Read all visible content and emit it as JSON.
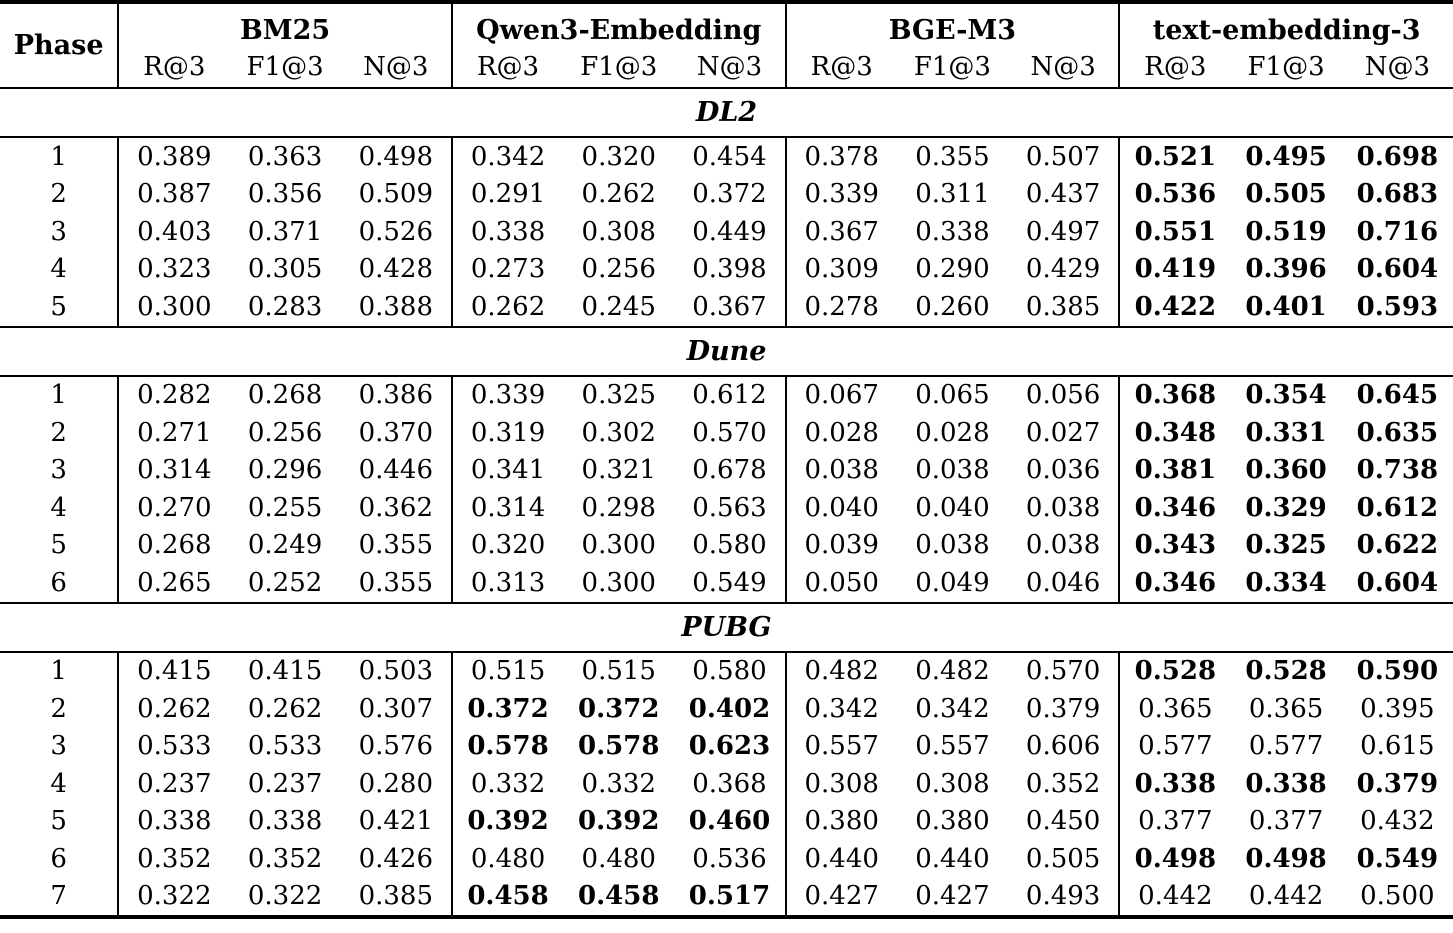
{
  "table": {
    "phase_header": "Phase",
    "metric_headers": [
      "R@3",
      "F1@3",
      "N@3"
    ],
    "groups": [
      "BM25",
      "Qwen3-Embedding",
      "BGE-M3",
      "text-embedding-3"
    ],
    "colors": {
      "text": "#000000",
      "rule": "#000000",
      "background": "#ffffff"
    },
    "sections": [
      {
        "label": "DL2",
        "rows": [
          {
            "phase": "1",
            "values": [
              [
                "0.389",
                "0.363",
                "0.498"
              ],
              [
                "0.342",
                "0.320",
                "0.454"
              ],
              [
                "0.378",
                "0.355",
                "0.507"
              ],
              [
                "0.521",
                "0.495",
                "0.698"
              ]
            ],
            "bold_group": 3
          },
          {
            "phase": "2",
            "values": [
              [
                "0.387",
                "0.356",
                "0.509"
              ],
              [
                "0.291",
                "0.262",
                "0.372"
              ],
              [
                "0.339",
                "0.311",
                "0.437"
              ],
              [
                "0.536",
                "0.505",
                "0.683"
              ]
            ],
            "bold_group": 3
          },
          {
            "phase": "3",
            "values": [
              [
                "0.403",
                "0.371",
                "0.526"
              ],
              [
                "0.338",
                "0.308",
                "0.449"
              ],
              [
                "0.367",
                "0.338",
                "0.497"
              ],
              [
                "0.551",
                "0.519",
                "0.716"
              ]
            ],
            "bold_group": 3
          },
          {
            "phase": "4",
            "values": [
              [
                "0.323",
                "0.305",
                "0.428"
              ],
              [
                "0.273",
                "0.256",
                "0.398"
              ],
              [
                "0.309",
                "0.290",
                "0.429"
              ],
              [
                "0.419",
                "0.396",
                "0.604"
              ]
            ],
            "bold_group": 3
          },
          {
            "phase": "5",
            "values": [
              [
                "0.300",
                "0.283",
                "0.388"
              ],
              [
                "0.262",
                "0.245",
                "0.367"
              ],
              [
                "0.278",
                "0.260",
                "0.385"
              ],
              [
                "0.422",
                "0.401",
                "0.593"
              ]
            ],
            "bold_group": 3
          }
        ]
      },
      {
        "label": "Dune",
        "rows": [
          {
            "phase": "1",
            "values": [
              [
                "0.282",
                "0.268",
                "0.386"
              ],
              [
                "0.339",
                "0.325",
                "0.612"
              ],
              [
                "0.067",
                "0.065",
                "0.056"
              ],
              [
                "0.368",
                "0.354",
                "0.645"
              ]
            ],
            "bold_group": 3
          },
          {
            "phase": "2",
            "values": [
              [
                "0.271",
                "0.256",
                "0.370"
              ],
              [
                "0.319",
                "0.302",
                "0.570"
              ],
              [
                "0.028",
                "0.028",
                "0.027"
              ],
              [
                "0.348",
                "0.331",
                "0.635"
              ]
            ],
            "bold_group": 3
          },
          {
            "phase": "3",
            "values": [
              [
                "0.314",
                "0.296",
                "0.446"
              ],
              [
                "0.341",
                "0.321",
                "0.678"
              ],
              [
                "0.038",
                "0.038",
                "0.036"
              ],
              [
                "0.381",
                "0.360",
                "0.738"
              ]
            ],
            "bold_group": 3
          },
          {
            "phase": "4",
            "values": [
              [
                "0.270",
                "0.255",
                "0.362"
              ],
              [
                "0.314",
                "0.298",
                "0.563"
              ],
              [
                "0.040",
                "0.040",
                "0.038"
              ],
              [
                "0.346",
                "0.329",
                "0.612"
              ]
            ],
            "bold_group": 3
          },
          {
            "phase": "5",
            "values": [
              [
                "0.268",
                "0.249",
                "0.355"
              ],
              [
                "0.320",
                "0.300",
                "0.580"
              ],
              [
                "0.039",
                "0.038",
                "0.038"
              ],
              [
                "0.343",
                "0.325",
                "0.622"
              ]
            ],
            "bold_group": 3
          },
          {
            "phase": "6",
            "values": [
              [
                "0.265",
                "0.252",
                "0.355"
              ],
              [
                "0.313",
                "0.300",
                "0.549"
              ],
              [
                "0.050",
                "0.049",
                "0.046"
              ],
              [
                "0.346",
                "0.334",
                "0.604"
              ]
            ],
            "bold_group": 3
          }
        ]
      },
      {
        "label": "PUBG",
        "rows": [
          {
            "phase": "1",
            "values": [
              [
                "0.415",
                "0.415",
                "0.503"
              ],
              [
                "0.515",
                "0.515",
                "0.580"
              ],
              [
                "0.482",
                "0.482",
                "0.570"
              ],
              [
                "0.528",
                "0.528",
                "0.590"
              ]
            ],
            "bold_group": 3
          },
          {
            "phase": "2",
            "values": [
              [
                "0.262",
                "0.262",
                "0.307"
              ],
              [
                "0.372",
                "0.372",
                "0.402"
              ],
              [
                "0.342",
                "0.342",
                "0.379"
              ],
              [
                "0.365",
                "0.365",
                "0.395"
              ]
            ],
            "bold_group": 1
          },
          {
            "phase": "3",
            "values": [
              [
                "0.533",
                "0.533",
                "0.576"
              ],
              [
                "0.578",
                "0.578",
                "0.623"
              ],
              [
                "0.557",
                "0.557",
                "0.606"
              ],
              [
                "0.577",
                "0.577",
                "0.615"
              ]
            ],
            "bold_group": 1
          },
          {
            "phase": "4",
            "values": [
              [
                "0.237",
                "0.237",
                "0.280"
              ],
              [
                "0.332",
                "0.332",
                "0.368"
              ],
              [
                "0.308",
                "0.308",
                "0.352"
              ],
              [
                "0.338",
                "0.338",
                "0.379"
              ]
            ],
            "bold_group": 3
          },
          {
            "phase": "5",
            "values": [
              [
                "0.338",
                "0.338",
                "0.421"
              ],
              [
                "0.392",
                "0.392",
                "0.460"
              ],
              [
                "0.380",
                "0.380",
                "0.450"
              ],
              [
                "0.377",
                "0.377",
                "0.432"
              ]
            ],
            "bold_group": 1
          },
          {
            "phase": "6",
            "values": [
              [
                "0.352",
                "0.352",
                "0.426"
              ],
              [
                "0.480",
                "0.480",
                "0.536"
              ],
              [
                "0.440",
                "0.440",
                "0.505"
              ],
              [
                "0.498",
                "0.498",
                "0.549"
              ]
            ],
            "bold_group": 3
          },
          {
            "phase": "7",
            "values": [
              [
                "0.322",
                "0.322",
                "0.385"
              ],
              [
                "0.458",
                "0.458",
                "0.517"
              ],
              [
                "0.427",
                "0.427",
                "0.493"
              ],
              [
                "0.442",
                "0.442",
                "0.500"
              ]
            ],
            "bold_group": 1
          }
        ]
      }
    ]
  }
}
